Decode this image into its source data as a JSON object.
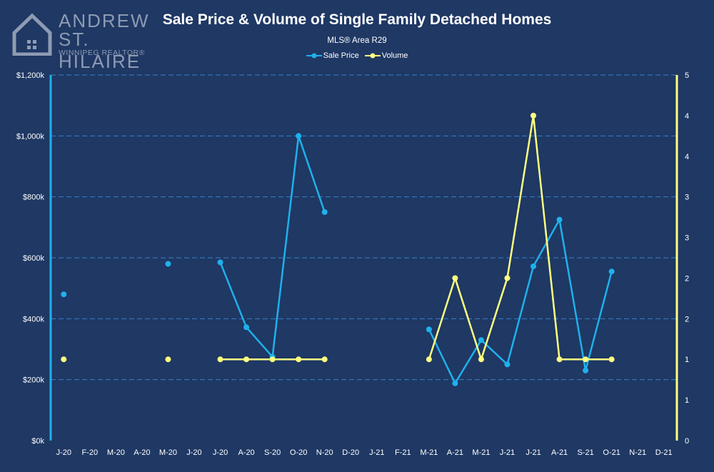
{
  "branding": {
    "line1": "ANDREW",
    "line2": "ST. HILAIRE",
    "line3": "WINNIPEG REALTOR®",
    "icon": "house-logo-icon"
  },
  "colors": {
    "background": "#1f3864",
    "sale_price": "#1fb1ec",
    "volume": "#ffff80",
    "text": "#ffffff",
    "grid": "#3a80c8"
  },
  "chart_data": {
    "type": "line",
    "title": "Sale Price & Volume of Single Family Detached Homes",
    "subtitle": "MLS® Area R29",
    "categories": [
      "J-20",
      "F-20",
      "M-20",
      "A-20",
      "M-20",
      "J-20",
      "J-20",
      "A-20",
      "S-20",
      "O-20",
      "N-20",
      "D-20",
      "J-21",
      "F-21",
      "M-21",
      "A-21",
      "M-21",
      "J-21",
      "J-21",
      "A-21",
      "S-21",
      "O-21",
      "N-21",
      "D-21"
    ],
    "series": [
      {
        "name": "Sale Price",
        "axis": "left",
        "values": [
          480000,
          null,
          null,
          null,
          580000,
          null,
          585000,
          372000,
          275000,
          1000000,
          750000,
          null,
          null,
          null,
          365000,
          188000,
          330000,
          250000,
          572000,
          725000,
          230000,
          555000,
          null,
          null
        ]
      },
      {
        "name": "Volume",
        "axis": "right",
        "values": [
          1,
          null,
          null,
          null,
          1,
          null,
          1,
          1,
          1,
          1,
          1,
          null,
          null,
          null,
          1,
          2,
          1,
          2,
          4,
          1,
          1,
          1,
          null,
          null
        ]
      }
    ],
    "y_left": {
      "min": 0,
      "max": 1200000,
      "ticks": [
        0,
        200000,
        400000,
        600000,
        800000,
        1000000,
        1200000
      ],
      "tick_labels": [
        "$0k",
        "$200k",
        "$400k",
        "$600k",
        "$800k",
        "$1,000k",
        "$1,200k"
      ]
    },
    "y_right": {
      "min": 0,
      "max": 4.5,
      "ticks": [
        0,
        0.5,
        1,
        1.5,
        2,
        2.5,
        3,
        3.5,
        4,
        4.5
      ],
      "tick_labels": [
        "0",
        "1",
        "1",
        "2",
        "2",
        "3",
        "3",
        "4",
        "4",
        "5"
      ]
    },
    "grid": true,
    "legend_position": "top-center"
  }
}
